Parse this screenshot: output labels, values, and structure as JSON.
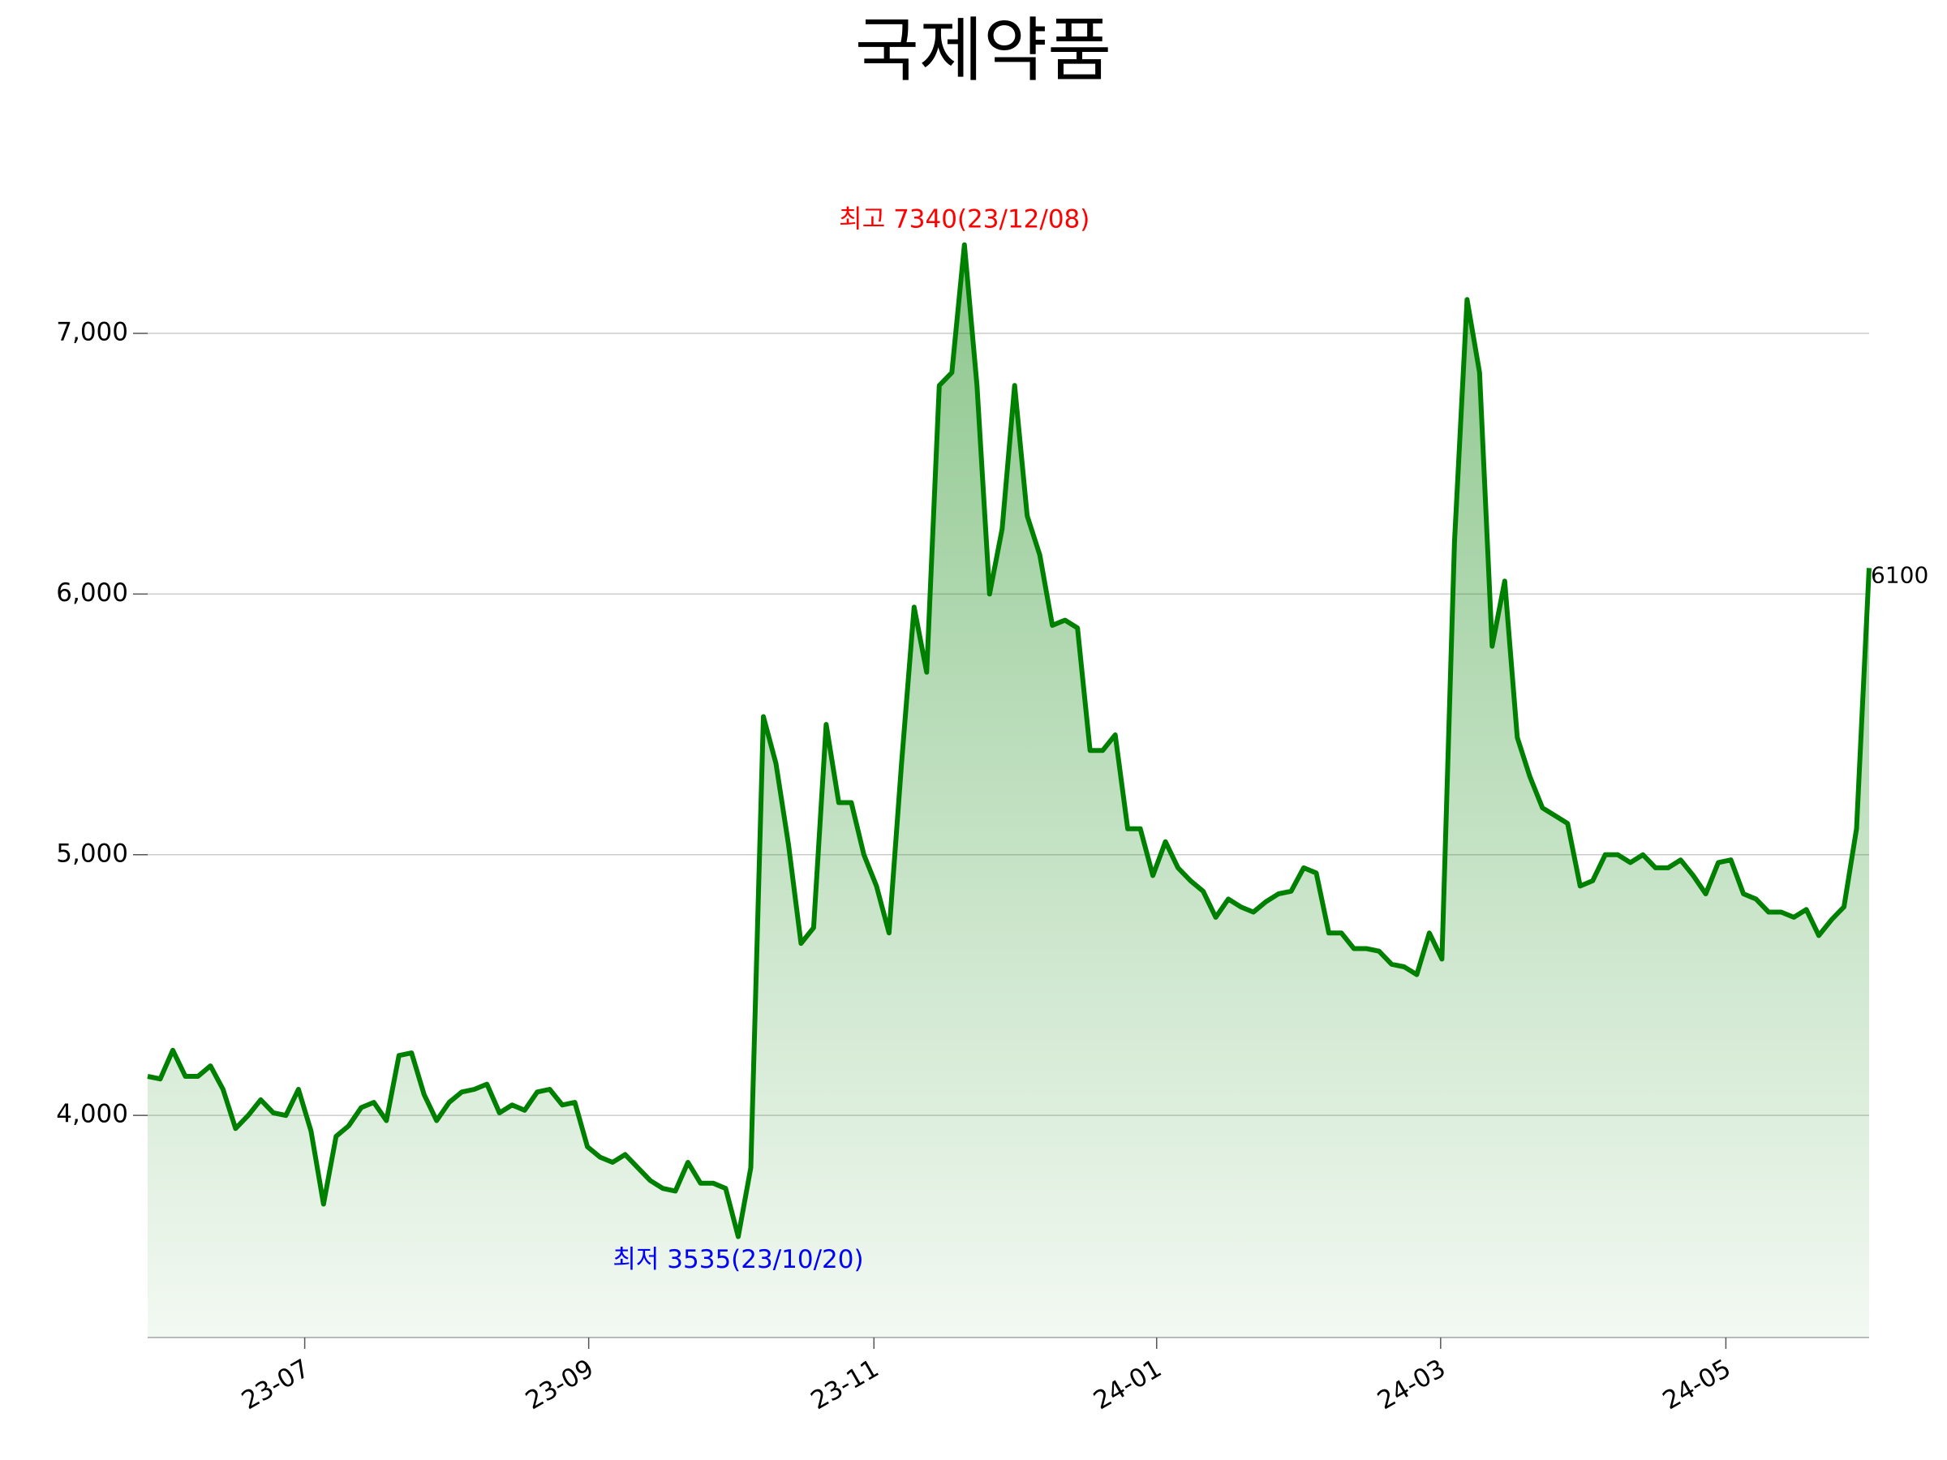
{
  "chart_data": {
    "type": "line",
    "title": "국제약품",
    "categories": [
      null,
      null,
      null,
      null,
      null,
      null,
      null,
      null,
      null,
      null,
      null,
      null,
      null,
      null,
      null,
      null,
      null,
      null,
      null,
      null,
      null,
      null,
      null,
      null,
      null,
      null,
      null,
      null,
      null,
      null,
      null,
      null,
      null,
      null,
      null,
      null,
      null,
      null,
      null,
      null,
      null,
      null,
      null,
      null,
      null,
      null,
      null,
      null,
      null,
      null,
      null,
      null,
      null,
      null,
      null,
      null,
      null,
      null,
      null,
      null,
      null,
      null,
      null,
      null,
      null,
      null,
      null,
      null,
      null,
      null,
      null,
      null,
      null,
      null,
      null,
      null,
      null,
      null,
      null,
      null,
      null,
      null,
      null,
      null,
      null,
      null,
      null,
      null,
      null,
      null,
      null,
      null,
      null,
      null,
      null,
      null,
      null,
      null,
      null,
      null,
      null,
      null,
      null,
      null,
      null,
      null,
      null,
      null,
      null,
      null,
      null,
      null,
      null,
      null,
      null,
      null,
      null,
      null,
      null,
      null,
      null,
      null,
      null,
      null,
      null,
      null,
      null,
      null,
      null,
      null,
      null,
      null,
      null,
      null,
      null,
      null,
      null,
      null
    ],
    "series": [
      {
        "name": "국제약품",
        "color": "#008000",
        "values": [
          4150,
          4140,
          4250,
          4150,
          4150,
          4190,
          4100,
          3950,
          4000,
          4060,
          4010,
          4000,
          4100,
          3940,
          3660,
          3920,
          3960,
          4030,
          4050,
          3980,
          4230,
          4240,
          4080,
          3980,
          4050,
          4090,
          4100,
          4120,
          4010,
          4040,
          4020,
          4090,
          4100,
          4040,
          4050,
          3880,
          3840,
          3820,
          3850,
          3800,
          3750,
          3720,
          3710,
          3820,
          3740,
          3740,
          3720,
          3535,
          3800,
          5530,
          5350,
          5040,
          4660,
          4720,
          5500,
          5200,
          5200,
          5000,
          4880,
          4700,
          5350,
          5950,
          5700,
          6800,
          6850,
          7340,
          6800,
          6000,
          6250,
          6800,
          6300,
          6150,
          5880,
          5900,
          5870,
          5400,
          5400,
          5460,
          5100,
          5100,
          4920,
          5050,
          4950,
          4900,
          4860,
          4760,
          4830,
          4800,
          4780,
          4820,
          4850,
          4860,
          4950,
          4930,
          4700,
          4700,
          4640,
          4640,
          4630,
          4580,
          4570,
          4540,
          4700,
          4600,
          6200,
          7130,
          6850,
          5800,
          6050,
          5450,
          5300,
          5180,
          5150,
          5120,
          4880,
          4900,
          5000,
          5000,
          4970,
          5000,
          4950,
          4950,
          4980,
          4920,
          4850,
          4970,
          4980,
          4850,
          4830,
          4780,
          4780,
          4760,
          4790,
          4690,
          4750,
          4800,
          5100,
          6100
        ]
      }
    ],
    "ylim": [
      3148,
      7540
    ],
    "yticks": [
      {
        "value": 4000,
        "label": "4,000"
      },
      {
        "value": 5000,
        "label": "5,000"
      },
      {
        "value": 6000,
        "label": "6,000"
      },
      {
        "value": 7000,
        "label": "7,000"
      }
    ],
    "xticks": [
      {
        "value": 12.5,
        "label": "23-07"
      },
      {
        "value": 35.1,
        "label": "23-09"
      },
      {
        "value": 57.8,
        "label": "23-11"
      },
      {
        "value": 80.3,
        "label": "24-01"
      },
      {
        "value": 102.9,
        "label": "24-03"
      },
      {
        "value": 125.6,
        "label": "24-05"
      }
    ],
    "grid": true,
    "annotations": [
      {
        "text": "최고 7340(23/12/08)",
        "color": "#ff0000",
        "at": "max"
      },
      {
        "text": "최저 3535(23/10/20)",
        "color": "#0000ff",
        "at": "min"
      }
    ]
  }
}
